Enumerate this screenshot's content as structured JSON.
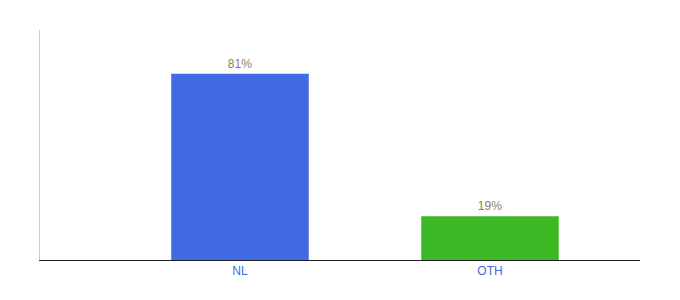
{
  "chart_data": {
    "type": "bar",
    "categories": [
      "NL",
      "OTH"
    ],
    "values": [
      81,
      19
    ],
    "value_labels": [
      "81%",
      "19%"
    ],
    "colors": [
      "#4169E1",
      "#3CB824"
    ],
    "ylim": [
      0,
      100
    ],
    "grid": false,
    "data_labels": true,
    "tick_labels": "x"
  }
}
